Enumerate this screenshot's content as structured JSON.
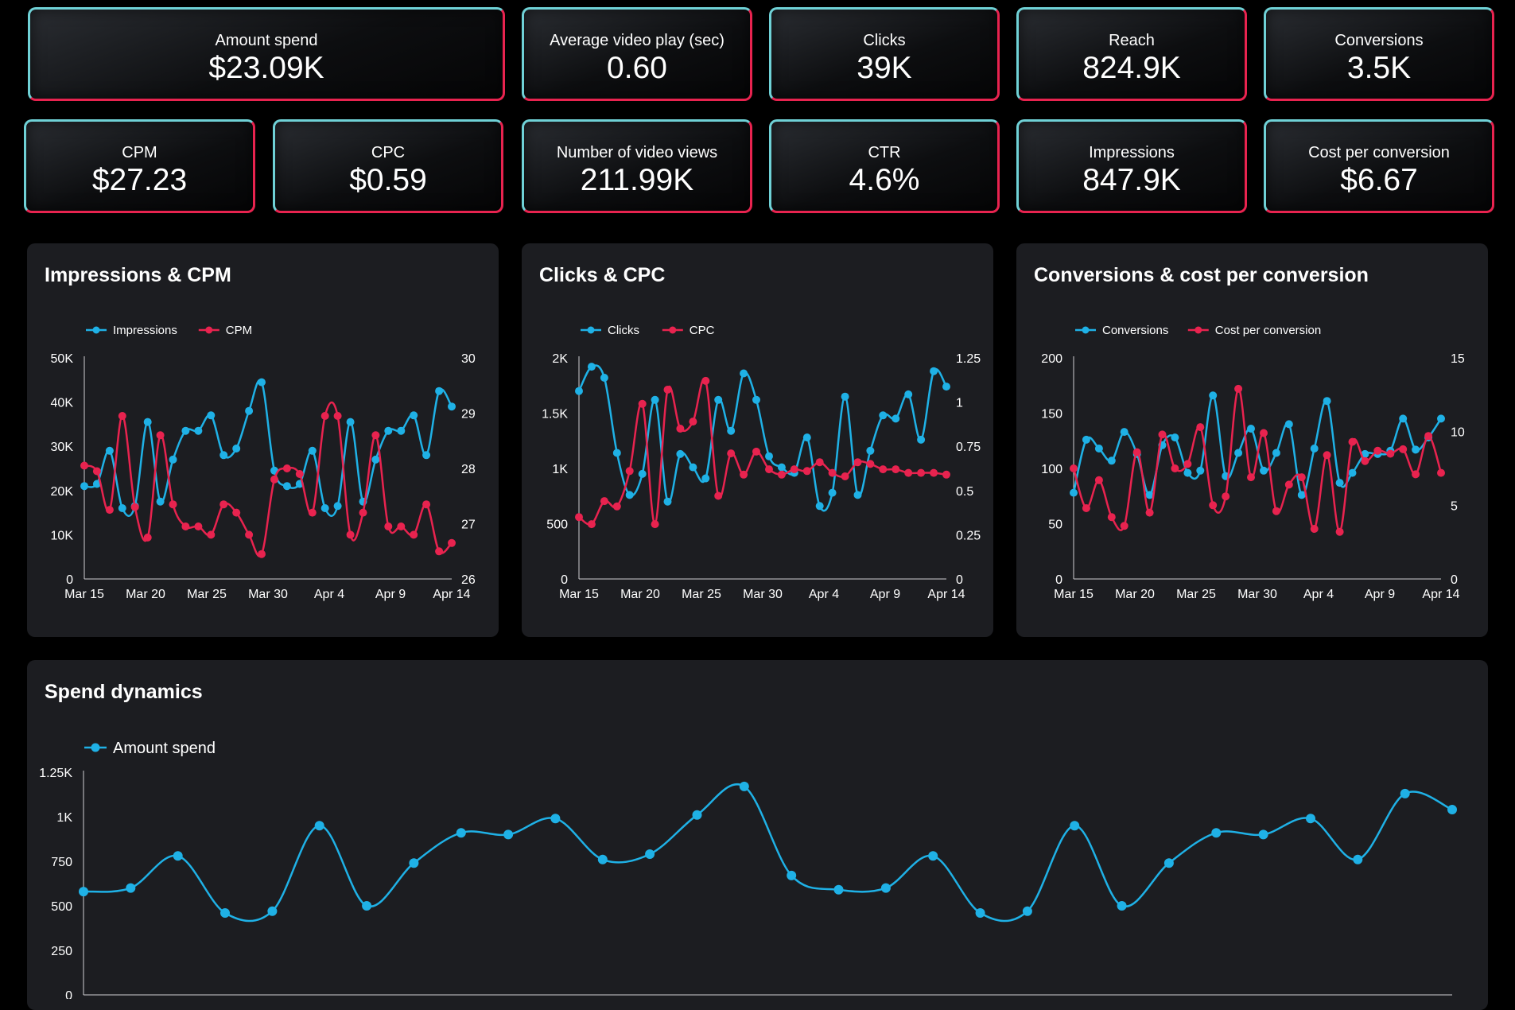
{
  "kpis": [
    {
      "label": "Amount spend",
      "value": "$23.09K"
    },
    {
      "label": "Average video play (sec)",
      "value": "0.60"
    },
    {
      "label": "Clicks",
      "value": "39K"
    },
    {
      "label": "Reach",
      "value": "824.9K"
    },
    {
      "label": "Conversions",
      "value": "3.5K"
    },
    {
      "label": "CPM",
      "value": "$27.23"
    },
    {
      "label": "CPC",
      "value": "$0.59"
    },
    {
      "label": "Number of video views",
      "value": "211.99K"
    },
    {
      "label": "CTR",
      "value": "4.6%"
    },
    {
      "label": "Impressions",
      "value": "847.9K"
    },
    {
      "label": "Cost per conversion",
      "value": "$6.67"
    }
  ],
  "colors": {
    "series_blue": "#1fb1e6",
    "series_red": "#e8234f",
    "panel_bg": "#1c1d21",
    "page_bg": "#000000"
  },
  "chart_data": [
    {
      "id": "impressions-cpm",
      "type": "line",
      "title": "Impressions & CPM",
      "x_ticks": [
        "Mar 15",
        "Mar 20",
        "Mar 25",
        "Mar 30",
        "Apr 4",
        "Apr 9",
        "Apr 14"
      ],
      "y_left": {
        "min": 0,
        "max": 50000,
        "ticks": [
          "0",
          "10K",
          "20K",
          "30K",
          "40K",
          "50K"
        ]
      },
      "y_right": {
        "min": 26,
        "max": 30,
        "ticks": [
          "26",
          "27",
          "28",
          "29",
          "30"
        ]
      },
      "series": [
        {
          "name": "Impressions",
          "axis": "left",
          "color": "#1fb1e6",
          "values": [
            21000,
            21500,
            29000,
            16000,
            16500,
            35500,
            17500,
            27000,
            33500,
            33500,
            37000,
            28000,
            29500,
            38000,
            44500,
            24500,
            21000,
            21500,
            29000,
            16000,
            16500,
            35500,
            17500,
            27000,
            33500,
            33500,
            37000,
            28000,
            42500,
            39000
          ]
        },
        {
          "name": "CPM",
          "axis": "right",
          "color": "#e8234f",
          "values": [
            28.05,
            27.95,
            27.25,
            28.95,
            27.3,
            26.75,
            28.6,
            27.35,
            26.95,
            26.95,
            26.8,
            27.35,
            27.2,
            26.8,
            26.45,
            27.8,
            28.0,
            27.9,
            27.2,
            28.95,
            28.95,
            26.8,
            27.2,
            28.6,
            26.95,
            26.95,
            26.8,
            27.35,
            26.5,
            26.65
          ]
        }
      ]
    },
    {
      "id": "clicks-cpc",
      "type": "line",
      "title": "Clicks & CPC",
      "x_ticks": [
        "Mar 15",
        "Mar 20",
        "Mar 25",
        "Mar 30",
        "Apr 4",
        "Apr 9",
        "Apr 14"
      ],
      "y_left": {
        "min": 0,
        "max": 2000,
        "ticks": [
          "0",
          "500",
          "1K",
          "1.5K",
          "2K"
        ]
      },
      "y_right": {
        "min": 0,
        "max": 1.25,
        "ticks": [
          "0",
          "0.25",
          "0.5",
          "0.75",
          "1",
          "1.25"
        ]
      },
      "series": [
        {
          "name": "Clicks",
          "axis": "left",
          "color": "#1fb1e6",
          "values": [
            1700,
            1920,
            1820,
            1140,
            760,
            950,
            1620,
            700,
            1130,
            1010,
            910,
            1620,
            1340,
            1860,
            1620,
            1110,
            1010,
            960,
            1280,
            660,
            780,
            1650,
            760,
            1160,
            1480,
            1450,
            1670,
            1260,
            1880,
            1740
          ]
        },
        {
          "name": "CPC",
          "axis": "right",
          "color": "#e8234f",
          "values": [
            0.35,
            0.31,
            0.44,
            0.41,
            0.61,
            0.99,
            0.31,
            1.07,
            0.85,
            0.89,
            1.12,
            0.47,
            0.71,
            0.59,
            0.72,
            0.62,
            0.59,
            0.62,
            0.61,
            0.66,
            0.6,
            0.58,
            0.66,
            0.65,
            0.62,
            0.62,
            0.6,
            0.6,
            0.6,
            0.59
          ]
        }
      ]
    },
    {
      "id": "conversions-cpconv",
      "type": "line",
      "title": "Conversions & cost per conversion",
      "x_ticks": [
        "Mar 15",
        "Mar 20",
        "Mar 25",
        "Mar 30",
        "Apr 4",
        "Apr 9",
        "Apr 14"
      ],
      "y_left": {
        "min": 0,
        "max": 200,
        "ticks": [
          "0",
          "50",
          "100",
          "150",
          "200"
        ]
      },
      "y_right": {
        "min": 0,
        "max": 15,
        "ticks": [
          "0",
          "5",
          "10",
          "15"
        ]
      },
      "series": [
        {
          "name": "Conversions",
          "axis": "left",
          "color": "#1fb1e6",
          "values": [
            78,
            126,
            118,
            107,
            133,
            113,
            76,
            121,
            128,
            96,
            98,
            166,
            93,
            114,
            136,
            98,
            114,
            140,
            76,
            118,
            161,
            87,
            96,
            113,
            113,
            116,
            145,
            117,
            128,
            145
          ]
        },
        {
          "name": "Cost per conversion",
          "axis": "right",
          "color": "#e8234f",
          "values": [
            7.5,
            4.8,
            6.7,
            4.2,
            3.6,
            8.6,
            4.5,
            9.8,
            7.5,
            7.8,
            10.3,
            5.0,
            5.6,
            12.9,
            6.9,
            9.9,
            4.6,
            6.4,
            6.9,
            3.4,
            8.4,
            3.2,
            9.3,
            8.0,
            8.7,
            8.5,
            8.8,
            7.1,
            9.7,
            7.2
          ]
        }
      ]
    },
    {
      "id": "spend-dynamics",
      "type": "line",
      "title": "Spend dynamics",
      "x_ticks": [],
      "y_left": {
        "min": 0,
        "max": 1250,
        "ticks": [
          "0",
          "250",
          "500",
          "750",
          "1K",
          "1.25K"
        ]
      },
      "series": [
        {
          "name": "Amount spend",
          "axis": "left",
          "color": "#1fb1e6",
          "values": [
            580,
            600,
            780,
            460,
            470,
            950,
            500,
            740,
            910,
            900,
            990,
            760,
            790,
            1010,
            1170,
            670,
            590,
            600,
            780,
            460,
            470,
            950,
            500,
            740,
            910,
            900,
            990,
            760,
            1130,
            1040
          ]
        }
      ]
    }
  ]
}
